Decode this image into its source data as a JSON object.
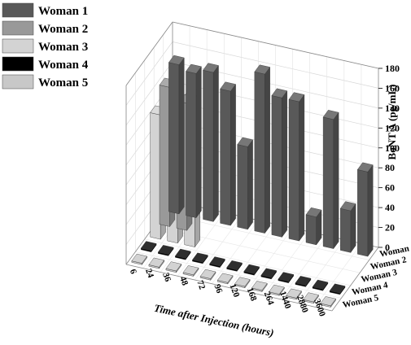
{
  "chart_data": {
    "type": "bar",
    "title": "",
    "xlabel": "Time after Injection (hours)",
    "ylabel": "",
    "zlabel": "BoNT A (pg/mL)",
    "zlim": [
      0,
      180
    ],
    "zticks": [
      "0",
      "20",
      "40",
      "60",
      "80",
      "100",
      "120",
      "140",
      "160",
      "180"
    ],
    "categories": [
      "6",
      "24",
      "36",
      "48",
      "72",
      "96",
      "120",
      "168",
      "264",
      "1440",
      "2880",
      "3600"
    ],
    "legend_position": "top-left",
    "grid": true,
    "series": [
      {
        "name": "Woman 1",
        "color": "#595959",
        "values": [
          150,
          145,
          150,
          135,
          83,
          160,
          140,
          140,
          28,
          130,
          42,
          85
        ]
      },
      {
        "name": "Woman 2",
        "color": "#999999",
        "values": [
          140,
          128,
          null,
          null,
          null,
          null,
          null,
          null,
          null,
          null,
          null,
          null
        ]
      },
      {
        "name": "Woman 3",
        "color": "#d3d3d3",
        "values": [
          125,
          103,
          150,
          null,
          null,
          null,
          null,
          null,
          null,
          null,
          null,
          null
        ]
      },
      {
        "name": "Woman 4",
        "color": "#000000",
        "values": [
          0,
          0,
          0,
          0,
          0,
          0,
          0,
          0,
          0,
          0,
          0,
          0
        ]
      },
      {
        "name": "Woman 5",
        "color": "#c8c8c8",
        "values": [
          0,
          0,
          0,
          0,
          0,
          0,
          0,
          0,
          0,
          0,
          0,
          0
        ]
      }
    ]
  }
}
